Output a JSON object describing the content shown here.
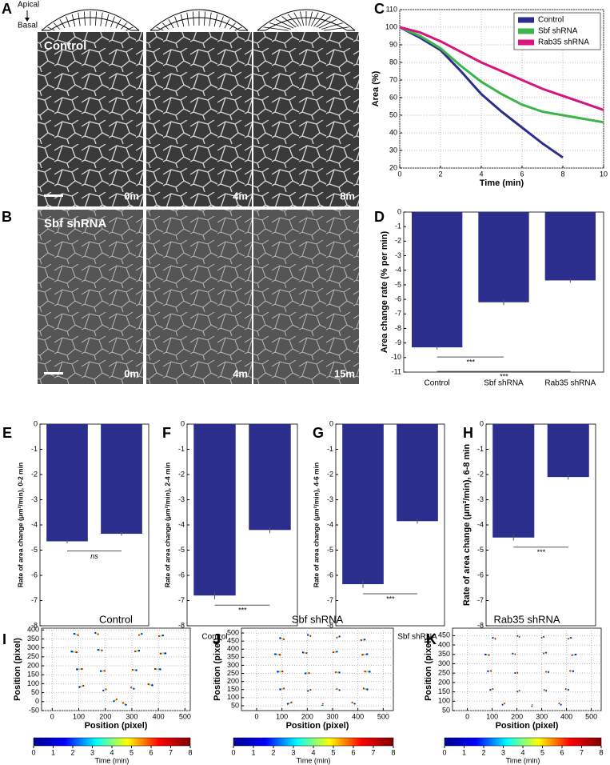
{
  "panel_labels": [
    "A",
    "B",
    "C",
    "D",
    "E",
    "F",
    "G",
    "H",
    "I",
    "J",
    "K"
  ],
  "micrographs": {
    "apical": "Apical",
    "basal": "Basal",
    "rows": [
      {
        "label": "Control",
        "times": [
          "0m",
          "4m",
          "8m"
        ]
      },
      {
        "label": "Sbf shRNA",
        "times": [
          "0m",
          "4m",
          "15m"
        ]
      }
    ]
  },
  "chart_data": [
    {
      "type": "line",
      "xlabel": "Time (min)",
      "ylabel": "Area (%)",
      "x": [
        0,
        1,
        2,
        3,
        4,
        5,
        6,
        7,
        8,
        9,
        10
      ],
      "series": [
        {
          "name": "Control",
          "color": "#2b2e8c",
          "values": [
            100,
            94,
            87,
            75,
            62,
            52,
            43,
            34,
            26,
            null,
            null
          ]
        },
        {
          "name": "Sbf shRNA",
          "color": "#3cb44b",
          "values": [
            100,
            95,
            88,
            78,
            69,
            62,
            56,
            52,
            50,
            48,
            46
          ]
        },
        {
          "name": "Rab35 shRNA",
          "color": "#d6157e",
          "values": [
            100,
            97,
            92,
            86,
            80,
            75,
            70,
            65,
            61,
            57,
            53
          ]
        }
      ],
      "xlim": [
        0,
        10
      ],
      "ylim": [
        20,
        110
      ],
      "xticks": [
        0,
        2,
        4,
        6,
        8,
        10
      ],
      "yticks": [
        20,
        30,
        40,
        50,
        60,
        70,
        80,
        90,
        100,
        110
      ],
      "grid": true,
      "legend": "upper right"
    },
    {
      "type": "bar",
      "ylabel": "Area change rate (% per min)",
      "categories": [
        "Control",
        "Sbf shRNA",
        "Rab35 shRNA"
      ],
      "values": [
        -9.3,
        -6.2,
        -4.7
      ],
      "errors": [
        0.15,
        0.2,
        0.15
      ],
      "color": "#2b2e8c",
      "ylim": [
        -11,
        0
      ],
      "yticks": [
        0,
        -1,
        -2,
        -3,
        -4,
        -5,
        -6,
        -7,
        -8,
        -9,
        -10,
        -11
      ],
      "annotations": [
        "***",
        "***"
      ]
    },
    {
      "type": "bar",
      "ylabel": "Rate of area change (μm²/min), 0-2 min",
      "categories": [
        "Control",
        "Sbf shRNA"
      ],
      "values": [
        -4.65,
        -4.35
      ],
      "errors": [
        0.08,
        0.08
      ],
      "color": "#2b2e8c",
      "ylim": [
        -8,
        0
      ],
      "yticks": [
        0,
        -1,
        -2,
        -3,
        -4,
        -5,
        -6,
        -7,
        -8
      ],
      "annotations": [
        "ns"
      ]
    },
    {
      "type": "bar",
      "ylabel": "Rate of area change (μm²/min), 2-4 min",
      "categories": [
        "Control",
        "Sbf shRNA"
      ],
      "values": [
        -6.8,
        -4.2
      ],
      "errors": [
        0.15,
        0.12
      ],
      "color": "#2b2e8c",
      "ylim": [
        -8,
        0
      ],
      "yticks": [
        0,
        -1,
        -2,
        -3,
        -4,
        -5,
        -6,
        -7,
        -8
      ],
      "annotations": [
        "***"
      ]
    },
    {
      "type": "bar",
      "ylabel": "Rate of area change (μm²/min), 4-6 min",
      "categories": [
        "Control",
        "Sbf shRNA"
      ],
      "values": [
        -6.35,
        -3.85
      ],
      "errors": [
        0.15,
        0.1
      ],
      "color": "#2b2e8c",
      "ylim": [
        -8,
        0
      ],
      "yticks": [
        0,
        -1,
        -2,
        -3,
        -4,
        -5,
        -6,
        -7,
        -8
      ],
      "annotations": [
        "***"
      ]
    },
    {
      "type": "bar",
      "ylabel": "Rate of area change (μm²/min), 6-8 min",
      "categories": [
        "Control",
        "Sbf shRNA"
      ],
      "values": [
        -4.5,
        -2.1
      ],
      "errors": [
        0.12,
        0.1
      ],
      "color": "#2b2e8c",
      "ylim": [
        -8,
        0
      ],
      "yticks": [
        0,
        -1,
        -2,
        -3,
        -4,
        -5,
        -6,
        -7,
        -8
      ],
      "annotations": [
        "***"
      ]
    },
    {
      "type": "trajectory",
      "title": "Control",
      "xlabel": "Position (pixel)",
      "ylabel": "Position (pixel)",
      "xlim": [
        -40,
        520
      ],
      "ylim": [
        -50,
        410
      ],
      "xticks": [
        0,
        100,
        200,
        300,
        400,
        500
      ],
      "yticks": [
        -50,
        0,
        50,
        100,
        150,
        200,
        250,
        300,
        350,
        400
      ],
      "grid": true,
      "tracks": [
        {
          "x": [
            80,
            100
          ],
          "y": [
            380,
            370
          ]
        },
        {
          "x": [
            160,
            175
          ],
          "y": [
            385,
            375
          ]
        },
        {
          "x": [
            340,
            325
          ],
          "y": [
            380,
            370
          ]
        },
        {
          "x": [
            420,
            400
          ],
          "y": [
            370,
            365
          ]
        },
        {
          "x": [
            70,
            95
          ],
          "y": [
            280,
            275
          ]
        },
        {
          "x": [
            170,
            190
          ],
          "y": [
            290,
            285
          ]
        },
        {
          "x": [
            330,
            310
          ],
          "y": [
            285,
            280
          ]
        },
        {
          "x": [
            430,
            405
          ],
          "y": [
            270,
            268
          ]
        },
        {
          "x": [
            90,
            115
          ],
          "y": [
            180,
            182
          ]
        },
        {
          "x": [
            180,
            200
          ],
          "y": [
            170,
            172
          ]
        },
        {
          "x": [
            320,
            300
          ],
          "y": [
            175,
            178
          ]
        },
        {
          "x": [
            410,
            385
          ],
          "y": [
            180,
            182
          ]
        },
        {
          "x": [
            100,
            120
          ],
          "y": [
            80,
            90
          ]
        },
        {
          "x": [
            190,
            205
          ],
          "y": [
            60,
            70
          ]
        },
        {
          "x": [
            310,
            295
          ],
          "y": [
            70,
            80
          ]
        },
        {
          "x": [
            380,
            360
          ],
          "y": [
            90,
            98
          ]
        },
        {
          "x": [
            230,
            245
          ],
          "y": [
            0,
            15
          ]
        },
        {
          "x": [
            280,
            265
          ],
          "y": [
            -20,
            -5
          ]
        }
      ],
      "colorbar": {
        "label": "Time (min)",
        "lim": [
          0,
          8
        ],
        "ticks": [
          0,
          1,
          2,
          3,
          4,
          5,
          6,
          7,
          8
        ],
        "colors": [
          "#00008f",
          "#0000ff",
          "#00ffff",
          "#ffff00",
          "#ff0000",
          "#800000"
        ]
      }
    },
    {
      "type": "trajectory",
      "title": "Sbf shRNA",
      "xlabel": "Position (pixel)",
      "ylabel": "Position (pixel)",
      "xlim": [
        -60,
        540
      ],
      "ylim": [
        20,
        530
      ],
      "xticks": [
        0,
        100,
        200,
        300,
        400,
        500
      ],
      "yticks": [
        50,
        100,
        150,
        200,
        250,
        300,
        350,
        400,
        450,
        500
      ],
      "grid": true,
      "tracks": [
        {
          "x": [
            90,
            110
          ],
          "y": [
            470,
            460
          ]
        },
        {
          "x": [
            200,
            215
          ],
          "y": [
            490,
            480
          ]
        },
        {
          "x": [
            330,
            315
          ],
          "y": [
            480,
            470
          ]
        },
        {
          "x": [
            430,
            410
          ],
          "y": [
            460,
            455
          ]
        },
        {
          "x": [
            70,
            95
          ],
          "y": [
            370,
            365
          ]
        },
        {
          "x": [
            180,
            200
          ],
          "y": [
            380,
            375
          ]
        },
        {
          "x": [
            320,
            300
          ],
          "y": [
            385,
            380
          ]
        },
        {
          "x": [
            440,
            415
          ],
          "y": [
            370,
            365
          ]
        },
        {
          "x": [
            80,
            105
          ],
          "y": [
            260,
            262
          ]
        },
        {
          "x": [
            190,
            210
          ],
          "y": [
            250,
            252
          ]
        },
        {
          "x": [
            330,
            310
          ],
          "y": [
            255,
            258
          ]
        },
        {
          "x": [
            450,
            425
          ],
          "y": [
            260,
            262
          ]
        },
        {
          "x": [
            90,
            110
          ],
          "y": [
            150,
            158
          ]
        },
        {
          "x": [
            200,
            215
          ],
          "y": [
            140,
            150
          ]
        },
        {
          "x": [
            330,
            315
          ],
          "y": [
            145,
            155
          ]
        },
        {
          "x": [
            440,
            420
          ],
          "y": [
            150,
            158
          ]
        },
        {
          "x": [
            120,
            140
          ],
          "y": [
            60,
            72
          ]
        },
        {
          "x": [
            260,
            262
          ],
          "y": [
            50,
            65
          ]
        },
        {
          "x": [
            390,
            375
          ],
          "y": [
            60,
            72
          ]
        }
      ],
      "colorbar": {
        "label": "Time (min)",
        "lim": [
          0,
          8
        ],
        "ticks": [
          0,
          1,
          2,
          3,
          4,
          5,
          6,
          7,
          8
        ],
        "colors": [
          "#00008f",
          "#0000ff",
          "#00ffff",
          "#ffff00",
          "#ff0000",
          "#800000"
        ]
      }
    },
    {
      "type": "trajectory",
      "title": "Rab35 shRNA",
      "xlabel": "Position (pixel)",
      "ylabel": "Position (pixel)",
      "xlim": [
        -60,
        540
      ],
      "ylim": [
        50,
        490
      ],
      "xticks": [
        0,
        100,
        200,
        300,
        400,
        500
      ],
      "yticks": [
        50,
        100,
        150,
        200,
        250,
        300,
        350,
        400,
        450
      ],
      "grid": true,
      "tracks": [
        {
          "x": [
            100,
            115
          ],
          "y": [
            440,
            432
          ]
        },
        {
          "x": [
            200,
            212
          ],
          "y": [
            450,
            442
          ]
        },
        {
          "x": [
            310,
            298
          ],
          "y": [
            445,
            438
          ]
        },
        {
          "x": [
            420,
            405
          ],
          "y": [
            440,
            432
          ]
        },
        {
          "x": [
            70,
            90
          ],
          "y": [
            350,
            346
          ]
        },
        {
          "x": [
            180,
            195
          ],
          "y": [
            355,
            350
          ]
        },
        {
          "x": [
            320,
            305
          ],
          "y": [
            360,
            355
          ]
        },
        {
          "x": [
            440,
            420
          ],
          "y": [
            350,
            345
          ]
        },
        {
          "x": [
            80,
            98
          ],
          "y": [
            260,
            262
          ]
        },
        {
          "x": [
            190,
            205
          ],
          "y": [
            250,
            252
          ]
        },
        {
          "x": [
            330,
            315
          ],
          "y": [
            255,
            258
          ]
        },
        {
          "x": [
            430,
            412
          ],
          "y": [
            260,
            262
          ]
        },
        {
          "x": [
            90,
            105
          ],
          "y": [
            160,
            166
          ]
        },
        {
          "x": [
            200,
            212
          ],
          "y": [
            150,
            158
          ]
        },
        {
          "x": [
            320,
            308
          ],
          "y": [
            155,
            162
          ]
        },
        {
          "x": [
            410,
            395
          ],
          "y": [
            160,
            166
          ]
        },
        {
          "x": [
            140,
            152
          ],
          "y": [
            80,
            90
          ]
        },
        {
          "x": [
            260,
            262
          ],
          "y": [
            70,
            82
          ]
        },
        {
          "x": [
            380,
            368
          ],
          "y": [
            80,
            90
          ]
        }
      ],
      "colorbar": {
        "label": "Time (min)",
        "lim": [
          0,
          8
        ],
        "ticks": [
          0,
          1,
          2,
          3,
          4,
          5,
          6,
          7,
          8
        ],
        "colors": [
          "#00008f",
          "#0000ff",
          "#00ffff",
          "#ffff00",
          "#ff0000",
          "#800000"
        ]
      }
    }
  ]
}
